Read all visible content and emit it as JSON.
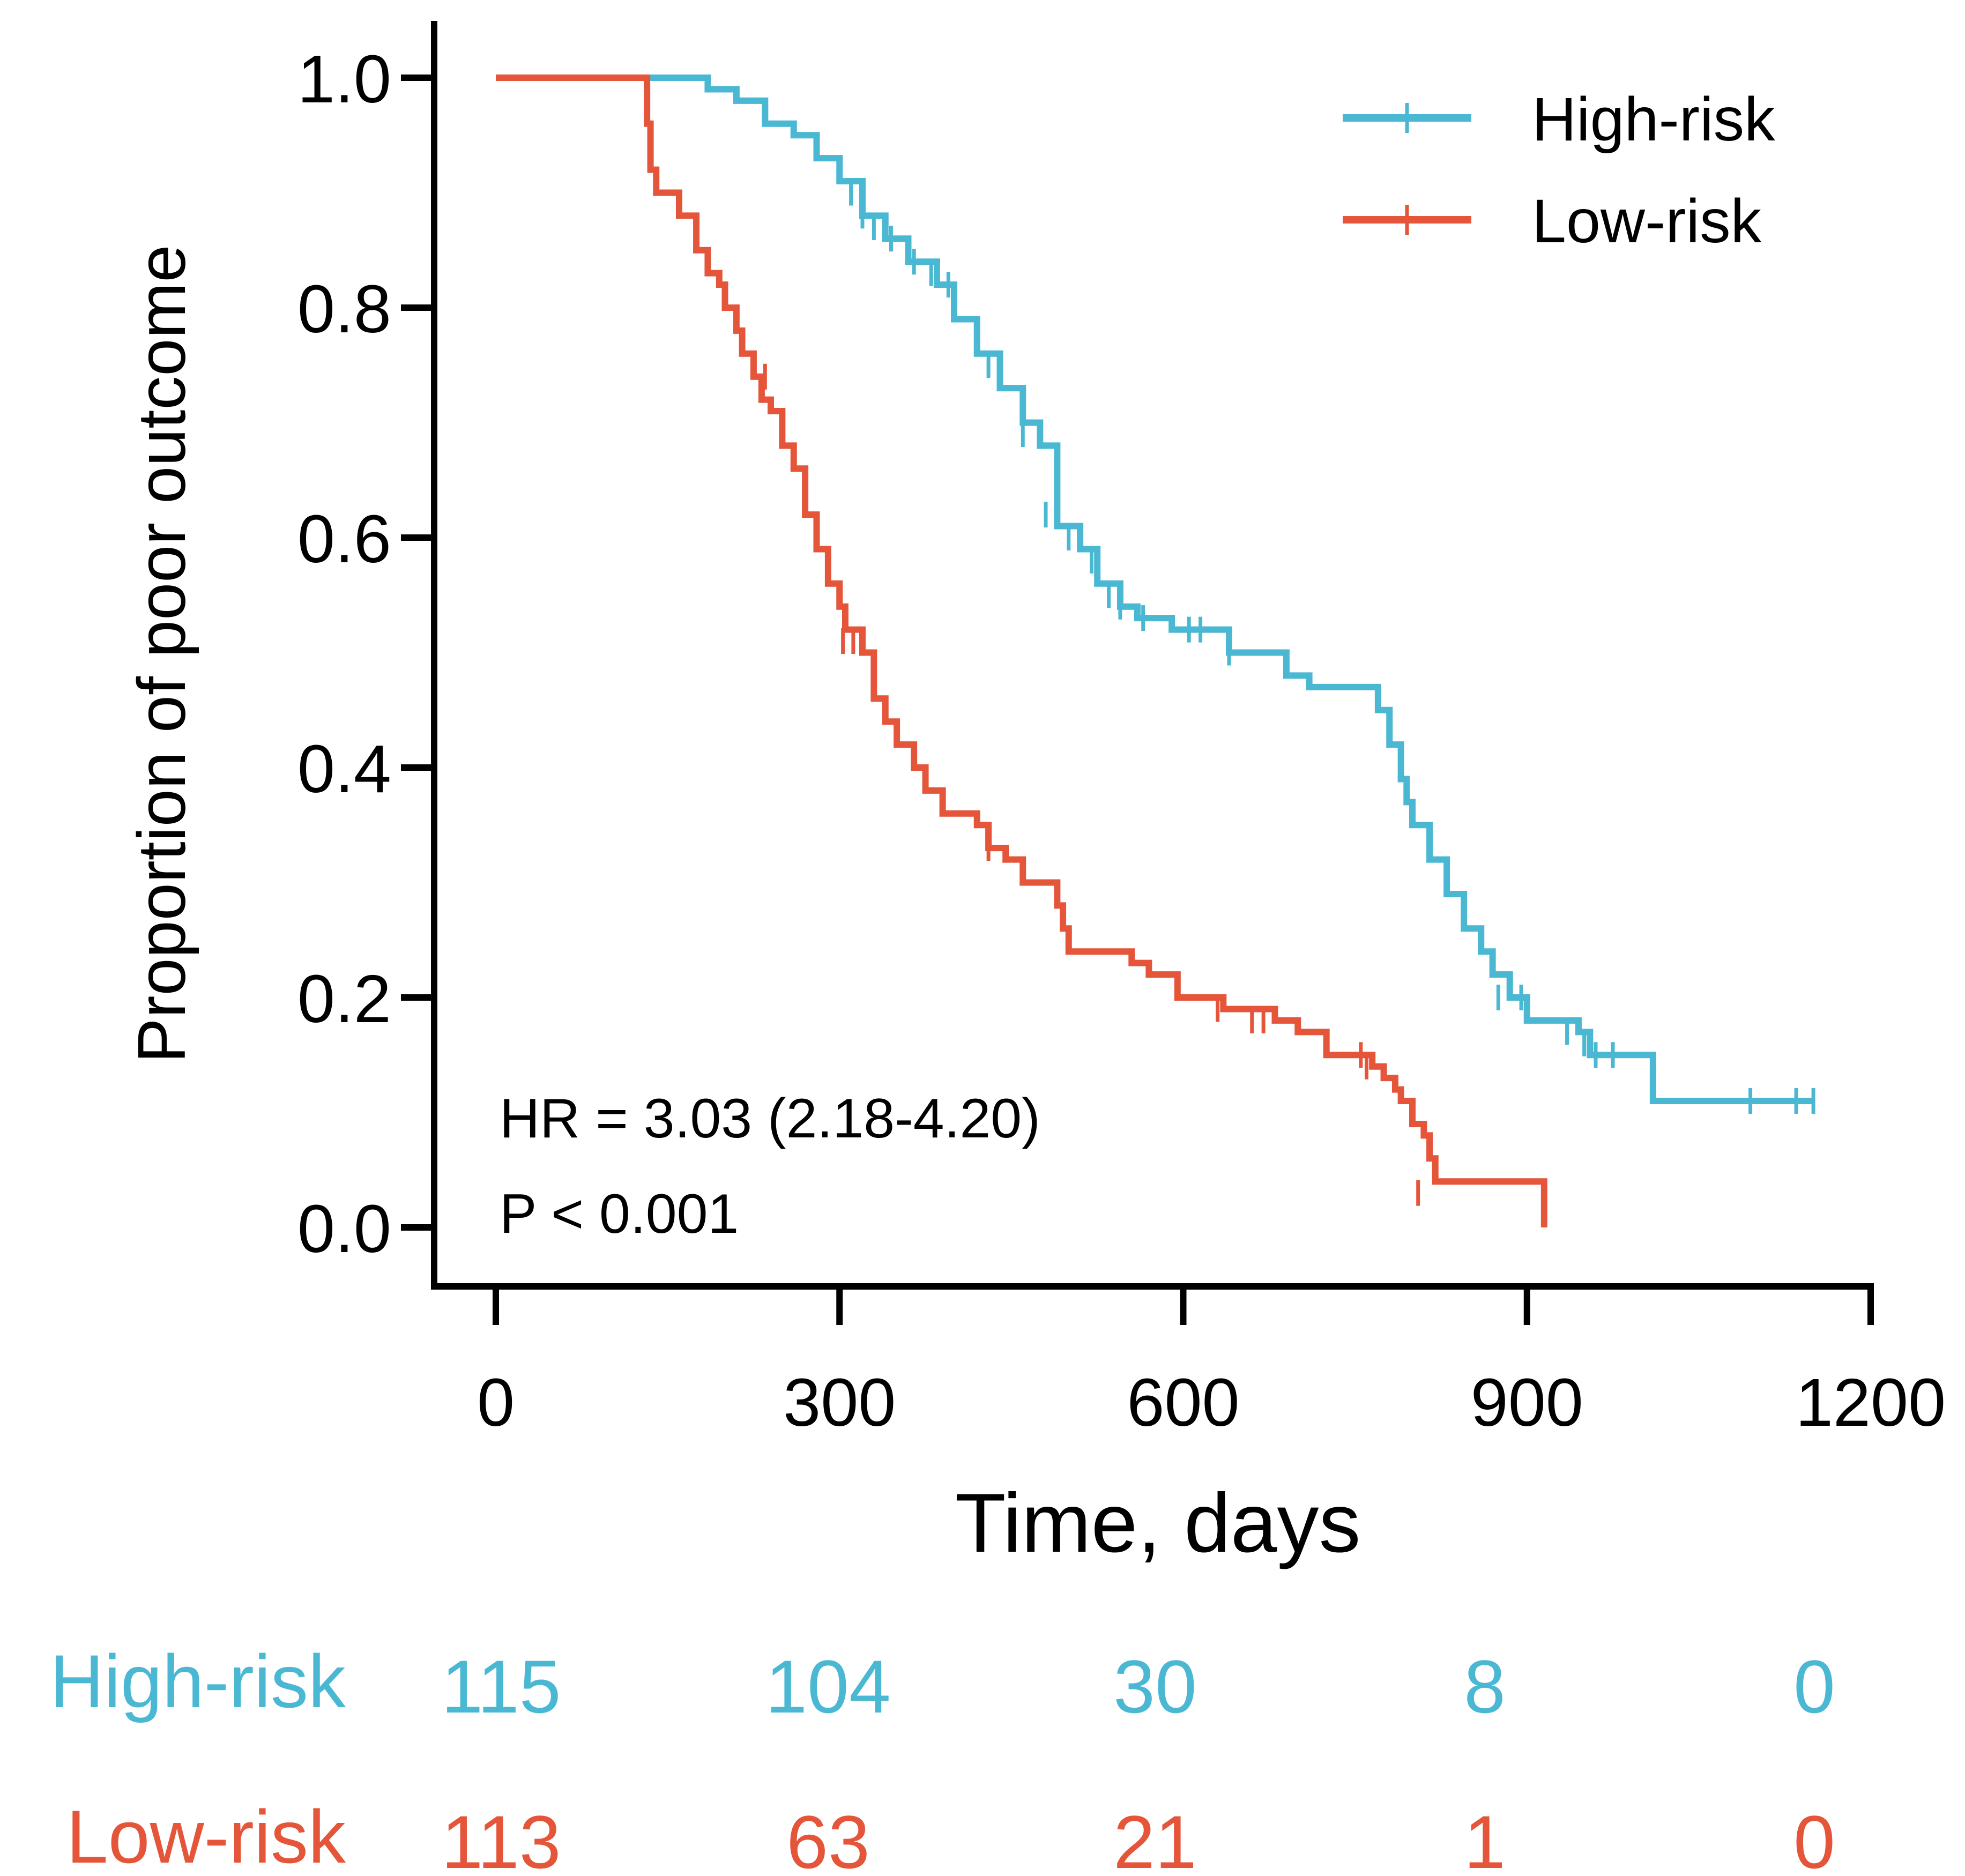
{
  "chart_data": {
    "type": "line",
    "subtype": "kaplan-meier",
    "xlabel": "Time, days",
    "ylabel": "Proportion of poor outcome",
    "xlim": [
      0,
      1200
    ],
    "ylim": [
      0,
      1.0
    ],
    "xticks": [
      "0",
      "300",
      "600",
      "900",
      "1200"
    ],
    "yticks": [
      "0.0",
      "0.2",
      "0.4",
      "0.6",
      "0.8",
      "1.0"
    ],
    "grid": false,
    "legend_position": "top-right",
    "annotations": [
      "HR = 3.03 (2.18-4.20)",
      "P < 0.001"
    ],
    "series": [
      {
        "name": "High-risk",
        "color": "#4ab8d3",
        "steps": [
          [
            0,
            1.0
          ],
          [
            185,
            0.99
          ],
          [
            210,
            0.98
          ],
          [
            235,
            0.96
          ],
          [
            260,
            0.95
          ],
          [
            280,
            0.93
          ],
          [
            300,
            0.91
          ],
          [
            320,
            0.88
          ],
          [
            340,
            0.86
          ],
          [
            360,
            0.84
          ],
          [
            385,
            0.82
          ],
          [
            400,
            0.79
          ],
          [
            420,
            0.76
          ],
          [
            440,
            0.73
          ],
          [
            460,
            0.7
          ],
          [
            475,
            0.68
          ],
          [
            490,
            0.61
          ],
          [
            510,
            0.59
          ],
          [
            525,
            0.56
          ],
          [
            545,
            0.54
          ],
          [
            560,
            0.53
          ],
          [
            590,
            0.52
          ],
          [
            640,
            0.5
          ],
          [
            690,
            0.48
          ],
          [
            710,
            0.47
          ],
          [
            765,
            0.47
          ],
          [
            770,
            0.45
          ],
          [
            780,
            0.42
          ],
          [
            790,
            0.39
          ],
          [
            795,
            0.37
          ],
          [
            800,
            0.35
          ],
          [
            815,
            0.32
          ],
          [
            830,
            0.29
          ],
          [
            845,
            0.26
          ],
          [
            860,
            0.24
          ],
          [
            870,
            0.22
          ],
          [
            885,
            0.2
          ],
          [
            900,
            0.18
          ],
          [
            945,
            0.17
          ],
          [
            955,
            0.15
          ],
          [
            1010,
            0.11
          ],
          [
            1150,
            0.11
          ]
        ],
        "censored": [
          [
            300,
            0.92
          ],
          [
            310,
            0.9
          ],
          [
            320,
            0.88
          ],
          [
            330,
            0.87
          ],
          [
            345,
            0.86
          ],
          [
            365,
            0.84
          ],
          [
            380,
            0.83
          ],
          [
            395,
            0.82
          ],
          [
            420,
            0.77
          ],
          [
            430,
            0.75
          ],
          [
            460,
            0.69
          ],
          [
            480,
            0.62
          ],
          [
            500,
            0.6
          ],
          [
            520,
            0.58
          ],
          [
            535,
            0.55
          ],
          [
            545,
            0.54
          ],
          [
            565,
            0.53
          ],
          [
            605,
            0.52
          ],
          [
            615,
            0.52
          ],
          [
            640,
            0.5
          ],
          [
            875,
            0.2
          ],
          [
            895,
            0.2
          ],
          [
            935,
            0.17
          ],
          [
            950,
            0.16
          ],
          [
            960,
            0.15
          ],
          [
            975,
            0.15
          ],
          [
            1095,
            0.11
          ],
          [
            1135,
            0.11
          ],
          [
            1150,
            0.11
          ]
        ]
      },
      {
        "name": "Low-risk",
        "color": "#e4553a",
        "steps": [
          [
            0,
            1.0
          ],
          [
            132,
            0.96
          ],
          [
            135,
            0.92
          ],
          [
            140,
            0.9
          ],
          [
            160,
            0.88
          ],
          [
            175,
            0.85
          ],
          [
            185,
            0.83
          ],
          [
            195,
            0.82
          ],
          [
            200,
            0.8
          ],
          [
            210,
            0.78
          ],
          [
            215,
            0.76
          ],
          [
            225,
            0.74
          ],
          [
            232,
            0.72
          ],
          [
            240,
            0.71
          ],
          [
            250,
            0.68
          ],
          [
            260,
            0.66
          ],
          [
            270,
            0.62
          ],
          [
            280,
            0.59
          ],
          [
            290,
            0.56
          ],
          [
            300,
            0.54
          ],
          [
            305,
            0.52
          ],
          [
            320,
            0.5
          ],
          [
            330,
            0.46
          ],
          [
            340,
            0.44
          ],
          [
            350,
            0.42
          ],
          [
            365,
            0.4
          ],
          [
            375,
            0.38
          ],
          [
            390,
            0.36
          ],
          [
            420,
            0.35
          ],
          [
            430,
            0.33
          ],
          [
            445,
            0.32
          ],
          [
            460,
            0.3
          ],
          [
            490,
            0.28
          ],
          [
            495,
            0.26
          ],
          [
            500,
            0.24
          ],
          [
            555,
            0.23
          ],
          [
            570,
            0.22
          ],
          [
            595,
            0.2
          ],
          [
            635,
            0.19
          ],
          [
            680,
            0.18
          ],
          [
            700,
            0.17
          ],
          [
            725,
            0.15
          ],
          [
            765,
            0.14
          ],
          [
            775,
            0.13
          ],
          [
            785,
            0.12
          ],
          [
            790,
            0.11
          ],
          [
            800,
            0.09
          ],
          [
            810,
            0.08
          ],
          [
            815,
            0.06
          ],
          [
            820,
            0.04
          ],
          [
            915,
            0.04
          ],
          [
            915,
            0.0
          ]
        ],
        "censored": [
          [
            215,
            0.77
          ],
          [
            235,
            0.74
          ],
          [
            303,
            0.51
          ],
          [
            312,
            0.51
          ],
          [
            430,
            0.33
          ],
          [
            630,
            0.19
          ],
          [
            660,
            0.18
          ],
          [
            670,
            0.18
          ],
          [
            755,
            0.15
          ],
          [
            760,
            0.14
          ],
          [
            805,
            0.03
          ]
        ]
      }
    ],
    "risk_table": {
      "rows": [
        {
          "name": "High-risk",
          "color": "#4ab8d3",
          "values": [
            "115",
            "104",
            "30",
            "8",
            "0"
          ]
        },
        {
          "name": "Low-risk",
          "color": "#e4553a",
          "values": [
            "113",
            "63",
            "21",
            "1",
            "0"
          ]
        }
      ]
    }
  }
}
